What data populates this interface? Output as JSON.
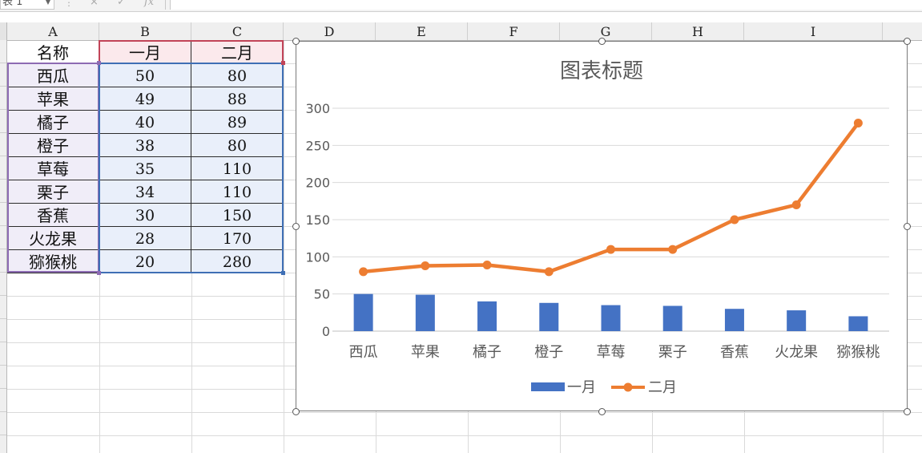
{
  "formula_bar": {
    "name_box": "表 1",
    "cancel_icon": "×",
    "confirm_icon": "✓",
    "fx_label": "fx"
  },
  "columns": [
    "A",
    "B",
    "C",
    "D",
    "E",
    "F",
    "G",
    "H",
    "I"
  ],
  "table": {
    "headers": [
      "名称",
      "一月",
      "二月"
    ],
    "rows": [
      [
        "西瓜",
        "50",
        "80"
      ],
      [
        "苹果",
        "49",
        "88"
      ],
      [
        "橘子",
        "40",
        "89"
      ],
      [
        "橙子",
        "38",
        "80"
      ],
      [
        "草莓",
        "35",
        "110"
      ],
      [
        "栗子",
        "34",
        "110"
      ],
      [
        "香蕉",
        "30",
        "150"
      ],
      [
        "火龙果",
        "28",
        "170"
      ],
      [
        "猕猴桃",
        "20",
        "280"
      ]
    ]
  },
  "chart_data": {
    "type": "bar+line",
    "title": "图表标题",
    "categories": [
      "西瓜",
      "苹果",
      "橘子",
      "橙子",
      "草莓",
      "栗子",
      "香蕉",
      "火龙果",
      "猕猴桃"
    ],
    "series": [
      {
        "name": "一月",
        "type": "bar",
        "color": "#4472c4",
        "values": [
          50,
          49,
          40,
          38,
          35,
          34,
          30,
          28,
          20
        ]
      },
      {
        "name": "二月",
        "type": "line",
        "color": "#ed7d31",
        "values": [
          80,
          88,
          89,
          80,
          110,
          110,
          150,
          170,
          280
        ]
      }
    ],
    "yticks": [
      "0",
      "50",
      "100",
      "150",
      "200",
      "250",
      "300"
    ],
    "ylim": [
      0,
      300
    ],
    "grid": true,
    "legend": "bottom"
  }
}
